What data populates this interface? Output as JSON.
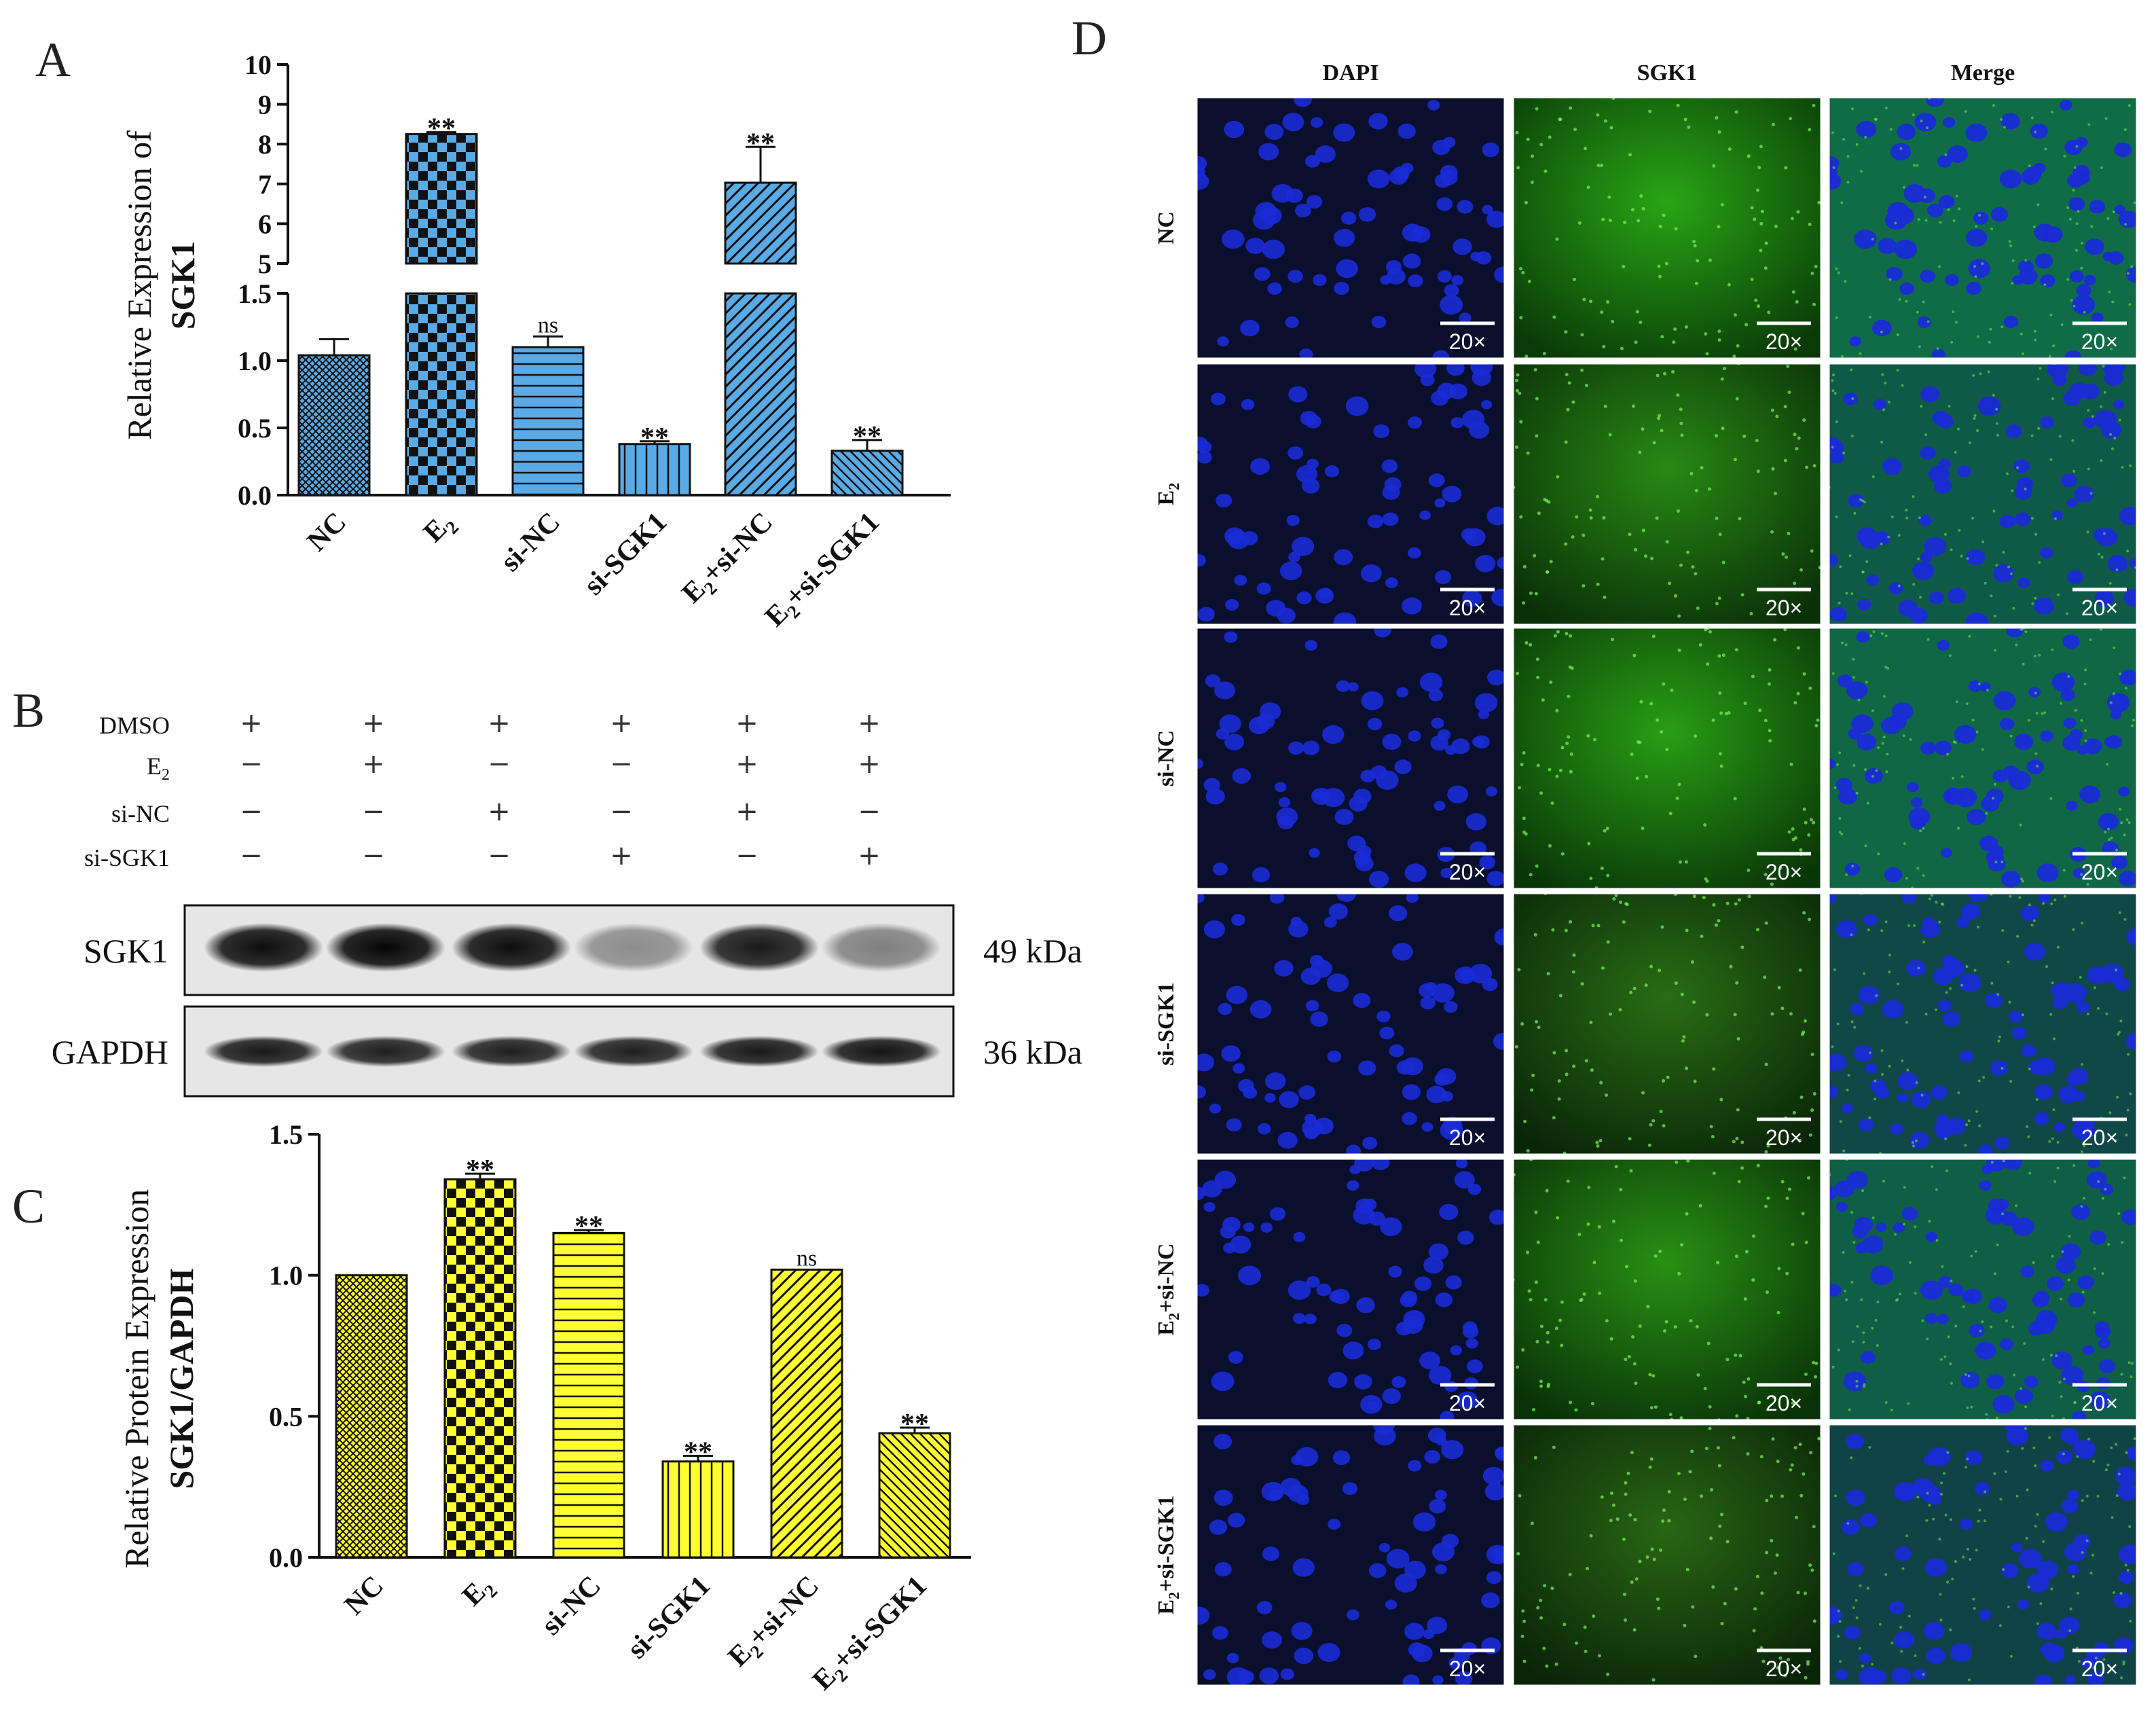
{
  "colors": {
    "blue_bar": "#5aaae6",
    "yellow_bar": "#ffff33",
    "axis": "#111111",
    "dapi": "#1a2bd6",
    "sgk1": "#2ea81e",
    "merge_bg": "#101a3a"
  },
  "panels": {
    "a": "A",
    "b": "B",
    "c": "C",
    "d": "D"
  },
  "chart_data": [
    {
      "type": "bar",
      "panel": "A",
      "ylabel_line1": "Relative Expression of",
      "ylabel_line2": "SGK1",
      "categories": [
        "NC",
        "E2",
        "si-NC",
        "si-SGK1",
        "E2+si-NC",
        "E2+si-SGK1"
      ],
      "values": [
        1.04,
        8.25,
        1.1,
        0.38,
        7.03,
        0.33
      ],
      "errors": [
        0.12,
        0.05,
        0.08,
        0.02,
        0.9,
        0.08
      ],
      "significance": [
        "",
        "**",
        "ns",
        "**",
        "**",
        "**"
      ],
      "ylim": [
        0,
        10
      ],
      "axis_break": [
        1.5,
        5
      ],
      "yticks_lower": [
        "0.0",
        "0.5",
        "1.0",
        "1.5"
      ],
      "yticks_upper": [
        "5",
        "6",
        "7",
        "8",
        "9",
        "10"
      ],
      "patterns": [
        "crosshatch",
        "checker",
        "horizontal",
        "vertical",
        "diagonal",
        "diagonal-reverse"
      ]
    },
    {
      "type": "bar",
      "panel": "C",
      "ylabel_line1": "Relative Protein Expression",
      "ylabel_line2": "SGK1/GAPDH",
      "categories": [
        "NC",
        "E2",
        "si-NC",
        "si-SGK1",
        "E2+si-NC",
        "E2+si-SGK1"
      ],
      "values": [
        1.0,
        1.34,
        1.15,
        0.34,
        1.02,
        0.44
      ],
      "errors": [
        0.0,
        0.02,
        0.01,
        0.02,
        0.0,
        0.02
      ],
      "significance": [
        "",
        "**",
        "**",
        "**",
        "ns",
        "**"
      ],
      "ylim": [
        0,
        1.5
      ],
      "yticks": [
        "0.0",
        "0.5",
        "1.0",
        "1.5"
      ],
      "patterns": [
        "crosshatch",
        "checker",
        "horizontal",
        "vertical",
        "diagonal",
        "diagonal-reverse"
      ]
    }
  ],
  "western": {
    "rows": [
      {
        "label": "DMSO",
        "marks": [
          "+",
          "+",
          "+",
          "+",
          "+",
          "+"
        ]
      },
      {
        "label": "E2",
        "marks": [
          "−",
          "+",
          "−",
          "−",
          "+",
          "+"
        ]
      },
      {
        "label": "si-NC",
        "marks": [
          "−",
          "−",
          "+",
          "−",
          "+",
          "−"
        ]
      },
      {
        "label": "si-SGK1",
        "marks": [
          "−",
          "−",
          "−",
          "+",
          "−",
          "+"
        ]
      }
    ],
    "bands": [
      {
        "name": "SGK1",
        "kda": "49 kDa",
        "intensity": [
          0.95,
          0.98,
          0.95,
          0.45,
          0.9,
          0.5
        ]
      },
      {
        "name": "GAPDH",
        "kda": "36 kDa",
        "intensity": [
          0.9,
          0.88,
          0.88,
          0.88,
          0.9,
          0.92
        ]
      }
    ]
  },
  "micrograph": {
    "columns": [
      "DAPI",
      "SGK1",
      "Merge"
    ],
    "rows": [
      "NC",
      "E2",
      "si-NC",
      "si-SGK1",
      "E2+si-NC",
      "E2+si-SGK1"
    ],
    "scale_label": "20×",
    "sgk1_intensity": [
      0.75,
      0.55,
      0.7,
      0.35,
      0.6,
      0.3
    ]
  }
}
